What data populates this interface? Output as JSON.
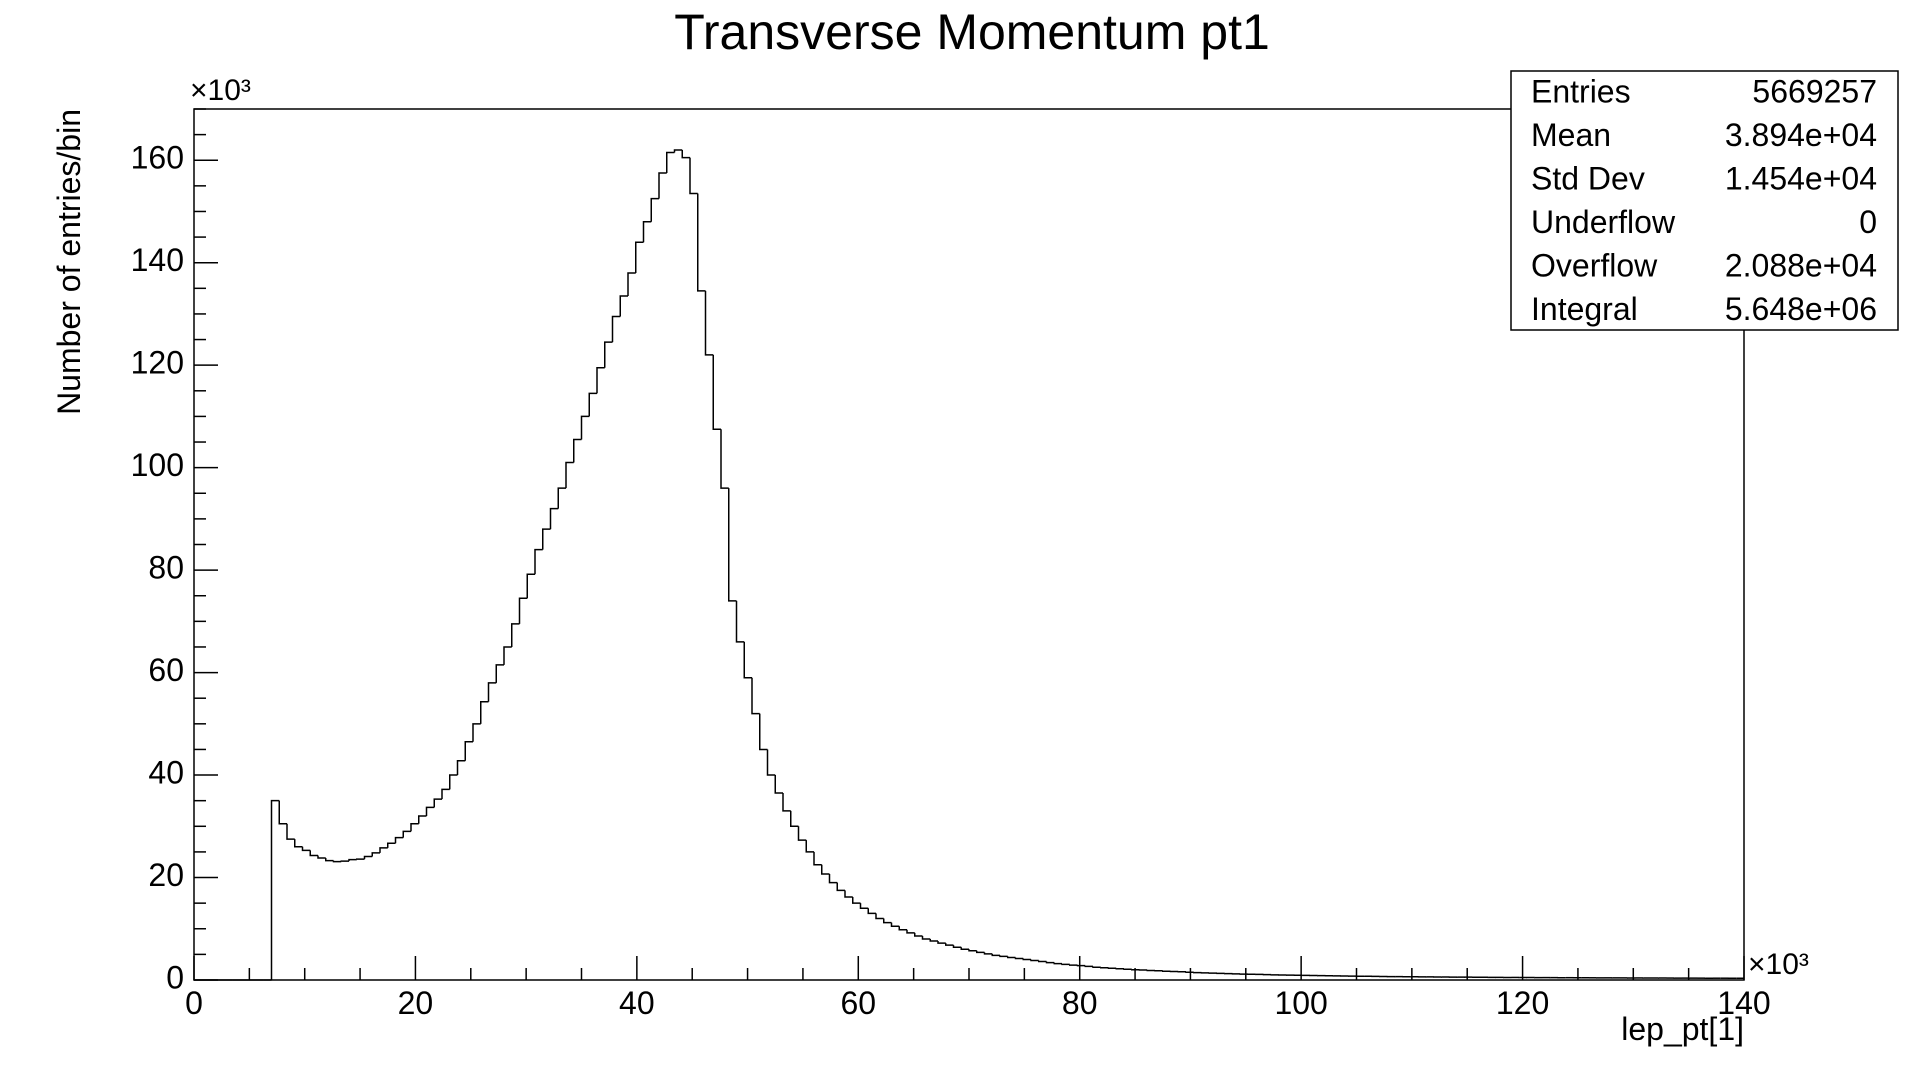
{
  "chart_data": {
    "type": "histogram",
    "title": "Transverse Momentum pt1",
    "x_label": "lep_pt[1]",
    "y_label": "Number of entries/bin",
    "x_multiplier": "×10³",
    "y_multiplier": "×10³",
    "color": "#000000",
    "xlim": [
      0,
      140
    ],
    "ylim": [
      0,
      170
    ],
    "xticks": [
      0,
      20,
      40,
      60,
      80,
      100,
      120,
      140
    ],
    "yticks": [
      0,
      20,
      40,
      60,
      80,
      100,
      120,
      140,
      160
    ],
    "xminorticks": [
      5,
      10,
      15,
      25,
      30,
      35,
      45,
      50,
      55,
      65,
      70,
      75,
      85,
      90,
      95,
      105,
      110,
      115,
      125,
      130,
      135
    ],
    "yminorticks": [
      5,
      10,
      15,
      25,
      30,
      35,
      45,
      50,
      55,
      65,
      70,
      75,
      85,
      90,
      95,
      105,
      110,
      115,
      125,
      130,
      135,
      145,
      150,
      155,
      165,
      170
    ],
    "bins": [
      0,
      0.7,
      1.4,
      2.1,
      2.8,
      3.5,
      4.2,
      4.9,
      5.6,
      6.3,
      7,
      7.7,
      8.4,
      9.1,
      9.8,
      10.5,
      11.2,
      11.9,
      12.6,
      13.3,
      14,
      14.7,
      15.4,
      16.1,
      16.8,
      17.5,
      18.2,
      18.9,
      19.6,
      20.3,
      21,
      21.7,
      22.4,
      23.1,
      23.8,
      24.5,
      25.2,
      25.9,
      26.6,
      27.3,
      28,
      28.7,
      29.4,
      30.1,
      30.8,
      31.5,
      32.2,
      32.9,
      33.6,
      34.3,
      35,
      35.7,
      36.4,
      37.1,
      37.8,
      38.5,
      39.2,
      39.9,
      40.6,
      41.3,
      42,
      42.7,
      43.4,
      44.1,
      44.8,
      45.5,
      46.2,
      46.9,
      47.6,
      48.3,
      49,
      49.7,
      50.4,
      51.1,
      51.8,
      52.5,
      53.2,
      53.9,
      54.6,
      55.3,
      56,
      56.7,
      57.4,
      58.1,
      58.8,
      59.5,
      60.2,
      60.9,
      61.6,
      62.3,
      63,
      63.7,
      64.4,
      65.1,
      65.8,
      66.5,
      67.2,
      67.9,
      68.6,
      69.3,
      70,
      70.7,
      71.4,
      72.1,
      72.8,
      73.5,
      74.2,
      74.9,
      75.6,
      76.3,
      77,
      77.7,
      78.4,
      79.1,
      79.8,
      80.5,
      81.2,
      81.9,
      82.6,
      83.3,
      84,
      84.7,
      85.4,
      86.1,
      86.8,
      87.5,
      88.2,
      88.9,
      89.6,
      90.3,
      91,
      91.7,
      92.4,
      93.1,
      93.8,
      94.5,
      95.2,
      95.9,
      96.6,
      97.3,
      98,
      98.7,
      99.4,
      100.1,
      100.8,
      101.5,
      102.2,
      102.9,
      103.6,
      104.3,
      105,
      105.7,
      106.4,
      107.1,
      107.8,
      108.5,
      109.2,
      109.9,
      110.6,
      111.3,
      112,
      112.7,
      113.4,
      114.1,
      114.8,
      115.5,
      116.2,
      116.9,
      117.6,
      118.3,
      119,
      119.7,
      120.4,
      121.1,
      121.8,
      122.5,
      123.2,
      123.9,
      124.6,
      125.3,
      126,
      126.7,
      127.4,
      128.1,
      128.8,
      129.5,
      130.2,
      130.9,
      131.6,
      132.3,
      133,
      133.7,
      134.4,
      135.1,
      135.8,
      136.5,
      137.2,
      137.9,
      138.6,
      139.3,
      140
    ],
    "values": [
      0,
      0,
      0,
      0,
      0,
      0,
      0,
      0,
      0,
      0,
      35,
      30.5,
      27.5,
      26,
      25.3,
      24.3,
      23.8,
      23.3,
      23.1,
      23.2,
      23.5,
      23.6,
      24.1,
      24.8,
      25.8,
      26.7,
      27.8,
      29,
      30.5,
      32,
      33.7,
      35.3,
      37.2,
      40,
      42.8,
      46.5,
      50,
      54.3,
      58,
      61.5,
      65,
      69.5,
      74.5,
      79.2,
      84,
      88,
      92,
      96,
      101,
      105.5,
      110,
      114.5,
      119.5,
      124.5,
      129.5,
      133.5,
      138,
      144,
      148,
      152.5,
      157.5,
      161.5,
      162,
      160.5,
      153.5,
      134.5,
      122,
      107.5,
      96,
      74,
      66,
      59,
      52,
      45,
      40,
      36.5,
      33,
      30,
      27.3,
      25,
      22.5,
      20.7,
      19,
      17.5,
      16.2,
      15,
      14,
      13,
      12,
      11.2,
      10.5,
      9.8,
      9.2,
      8.6,
      8,
      7.6,
      7.2,
      6.8,
      6.4,
      6,
      5.7,
      5.4,
      5.1,
      4.8,
      4.6,
      4.4,
      4.2,
      4,
      3.8,
      3.6,
      3.4,
      3.2,
      3.05,
      2.9,
      2.8,
      2.65,
      2.5,
      2.4,
      2.3,
      2.2,
      2.1,
      2,
      1.95,
      1.85,
      1.8,
      1.72,
      1.65,
      1.6,
      1.52,
      1.45,
      1.4,
      1.35,
      1.3,
      1.25,
      1.2,
      1.15,
      1.12,
      1.1,
      1.05,
      1,
      0.98,
      0.95,
      0.92,
      0.9,
      0.88,
      0.85,
      0.83,
      0.8,
      0.78,
      0.76,
      0.74,
      0.72,
      0.7,
      0.69,
      0.67,
      0.66,
      0.64,
      0.63,
      0.62,
      0.6,
      0.59,
      0.58,
      0.57,
      0.56,
      0.55,
      0.54,
      0.53,
      0.52,
      0.51,
      0.5,
      0.5,
      0.49,
      0.48,
      0.47,
      0.47,
      0.46,
      0.45,
      0.45,
      0.44,
      0.43,
      0.43,
      0.42,
      0.42,
      0.41,
      0.41,
      0.4,
      0.4,
      0.39,
      0.39,
      0.38,
      0.38,
      0.37,
      0.37,
      0.36,
      0.36,
      0.35,
      0.35,
      0.35,
      0.34,
      0.34
    ],
    "stats": [
      {
        "label": "Entries",
        "value": "5669257"
      },
      {
        "label": "Mean",
        "value": "3.894e+04"
      },
      {
        "label": "Std Dev",
        "value": "1.454e+04"
      },
      {
        "label": "Underflow",
        "value": "0"
      },
      {
        "label": "Overflow",
        "value": "2.088e+04"
      },
      {
        "label": "Integral",
        "value": "5.648e+06"
      }
    ]
  }
}
